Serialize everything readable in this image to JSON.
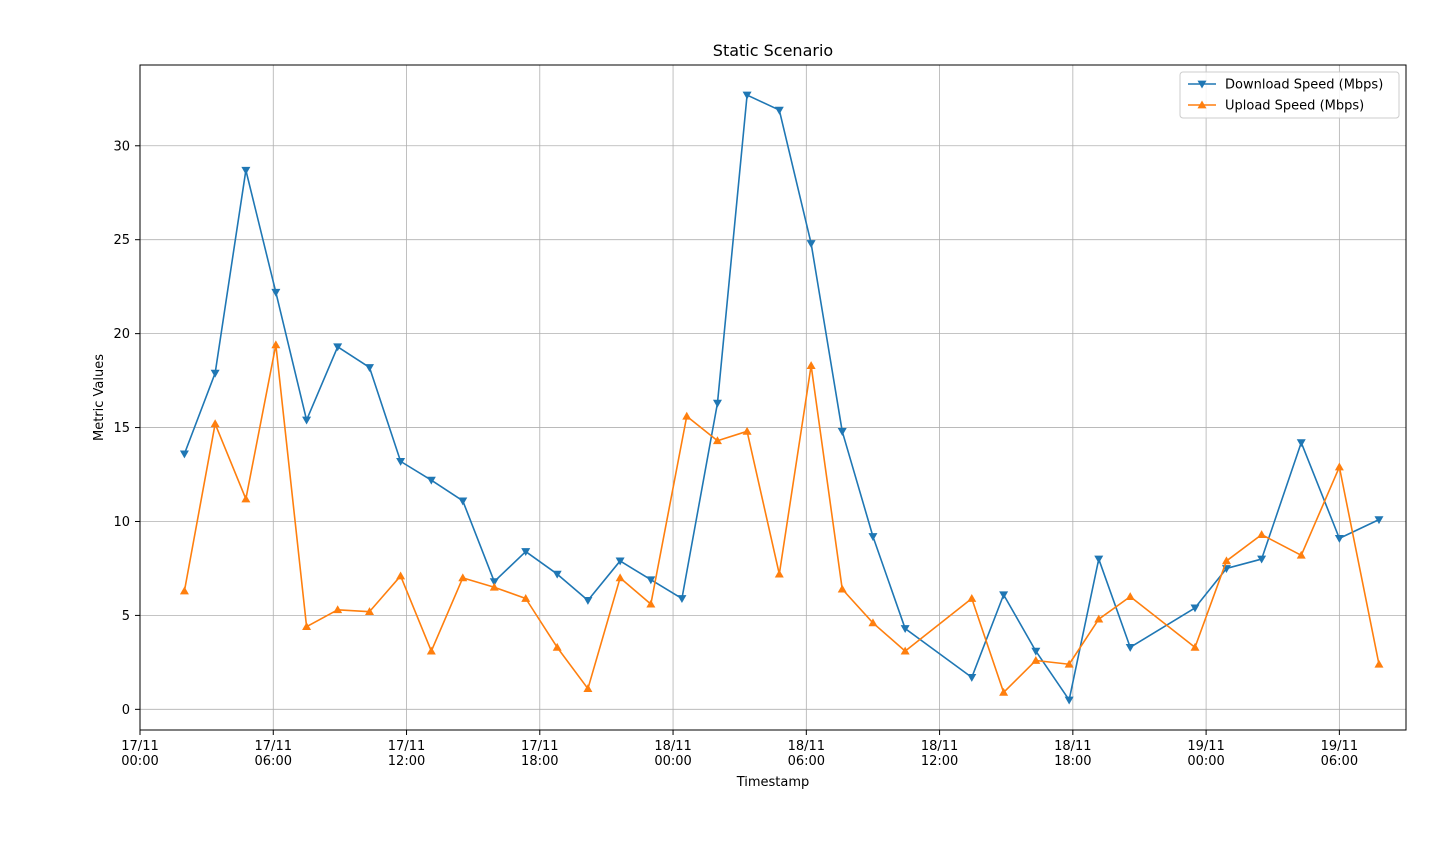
{
  "chart_data": {
    "type": "line",
    "title": "Static Scenario",
    "xlabel": "Timestamp",
    "ylabel": "Metric Values",
    "x_unit": "datetime",
    "xlim": [
      "2023-11-17T00:00",
      "2023-11-19T09:00"
    ],
    "ylim": [
      -1.1,
      34.3
    ],
    "x_ticks": [
      {
        "t": "2023-11-17T00:00",
        "label": [
          "17/11",
          "00:00"
        ]
      },
      {
        "t": "2023-11-17T06:00",
        "label": [
          "17/11",
          "06:00"
        ]
      },
      {
        "t": "2023-11-17T12:00",
        "label": [
          "17/11",
          "12:00"
        ]
      },
      {
        "t": "2023-11-17T18:00",
        "label": [
          "17/11",
          "18:00"
        ]
      },
      {
        "t": "2023-11-18T00:00",
        "label": [
          "18/11",
          "00:00"
        ]
      },
      {
        "t": "2023-11-18T06:00",
        "label": [
          "18/11",
          "06:00"
        ]
      },
      {
        "t": "2023-11-18T12:00",
        "label": [
          "18/11",
          "12:00"
        ]
      },
      {
        "t": "2023-11-18T18:00",
        "label": [
          "18/11",
          "18:00"
        ]
      },
      {
        "t": "2023-11-19T00:00",
        "label": [
          "19/11",
          "00:00"
        ]
      },
      {
        "t": "2023-11-19T06:00",
        "label": [
          "19/11",
          "06:00"
        ]
      }
    ],
    "y_ticks": [
      0,
      5,
      10,
      15,
      20,
      25,
      30
    ],
    "grid": true,
    "legend_position": "top-right",
    "series": [
      {
        "name": "Download Speed (Mbps)",
        "color": "#1f77b4",
        "marker": "triangle-down",
        "points": [
          {
            "x": "2023-11-17T02:00",
            "y": 13.6
          },
          {
            "x": "2023-11-17T03:23",
            "y": 17.9
          },
          {
            "x": "2023-11-17T04:46",
            "y": 28.7
          },
          {
            "x": "2023-11-17T06:07",
            "y": 22.2
          },
          {
            "x": "2023-11-17T07:30",
            "y": 15.4
          },
          {
            "x": "2023-11-17T08:54",
            "y": 19.3
          },
          {
            "x": "2023-11-17T10:20",
            "y": 18.2
          },
          {
            "x": "2023-11-17T11:44",
            "y": 13.2
          },
          {
            "x": "2023-11-17T13:07",
            "y": 12.2
          },
          {
            "x": "2023-11-17T14:32",
            "y": 11.1
          },
          {
            "x": "2023-11-17T15:57",
            "y": 6.8
          },
          {
            "x": "2023-11-17T17:22",
            "y": 8.4
          },
          {
            "x": "2023-11-17T18:47",
            "y": 7.2
          },
          {
            "x": "2023-11-17T20:10",
            "y": 5.8
          },
          {
            "x": "2023-11-17T21:37",
            "y": 7.9
          },
          {
            "x": "2023-11-17T23:00",
            "y": 6.9
          },
          {
            "x": "2023-11-18T00:24",
            "y": 5.9
          },
          {
            "x": "2023-11-18T02:00",
            "y": 16.3
          },
          {
            "x": "2023-11-18T03:20",
            "y": 32.7
          },
          {
            "x": "2023-11-18T04:47",
            "y": 31.9
          },
          {
            "x": "2023-11-18T06:13",
            "y": 24.8
          },
          {
            "x": "2023-11-18T07:37",
            "y": 14.8
          },
          {
            "x": "2023-11-18T09:00",
            "y": 9.2
          },
          {
            "x": "2023-11-18T10:27",
            "y": 4.3
          },
          {
            "x": "2023-11-18T13:27",
            "y": 1.7
          },
          {
            "x": "2023-11-18T14:53",
            "y": 6.1
          },
          {
            "x": "2023-11-18T16:20",
            "y": 3.1
          },
          {
            "x": "2023-11-18T17:50",
            "y": 0.5
          },
          {
            "x": "2023-11-18T19:10",
            "y": 8.0
          },
          {
            "x": "2023-11-18T20:35",
            "y": 3.3
          },
          {
            "x": "2023-11-18T23:30",
            "y": 5.4
          },
          {
            "x": "2023-11-19T00:55",
            "y": 7.5
          },
          {
            "x": "2023-11-19T02:30",
            "y": 8.0
          },
          {
            "x": "2023-11-19T04:17",
            "y": 14.2
          },
          {
            "x": "2023-11-19T06:00",
            "y": 9.1
          },
          {
            "x": "2023-11-19T07:47",
            "y": 10.1
          }
        ]
      },
      {
        "name": "Upload Speed (Mbps)",
        "color": "#ff7f0e",
        "marker": "triangle-up",
        "points": [
          {
            "x": "2023-11-17T02:00",
            "y": 6.3
          },
          {
            "x": "2023-11-17T03:23",
            "y": 15.2
          },
          {
            "x": "2023-11-17T04:46",
            "y": 11.2
          },
          {
            "x": "2023-11-17T06:07",
            "y": 19.4
          },
          {
            "x": "2023-11-17T07:30",
            "y": 4.4
          },
          {
            "x": "2023-11-17T08:54",
            "y": 5.3
          },
          {
            "x": "2023-11-17T10:20",
            "y": 5.2
          },
          {
            "x": "2023-11-17T11:44",
            "y": 7.1
          },
          {
            "x": "2023-11-17T13:07",
            "y": 3.1
          },
          {
            "x": "2023-11-17T14:32",
            "y": 7.0
          },
          {
            "x": "2023-11-17T15:57",
            "y": 6.5
          },
          {
            "x": "2023-11-17T17:22",
            "y": 5.9
          },
          {
            "x": "2023-11-17T18:47",
            "y": 3.3
          },
          {
            "x": "2023-11-17T20:10",
            "y": 1.1
          },
          {
            "x": "2023-11-17T21:37",
            "y": 7.0
          },
          {
            "x": "2023-11-17T23:00",
            "y": 5.6
          },
          {
            "x": "2023-11-18T00:37",
            "y": 15.6
          },
          {
            "x": "2023-11-18T02:00",
            "y": 14.3
          },
          {
            "x": "2023-11-18T03:20",
            "y": 14.8
          },
          {
            "x": "2023-11-18T04:47",
            "y": 7.2
          },
          {
            "x": "2023-11-18T06:13",
            "y": 18.3
          },
          {
            "x": "2023-11-18T07:37",
            "y": 6.4
          },
          {
            "x": "2023-11-18T09:00",
            "y": 4.6
          },
          {
            "x": "2023-11-18T10:27",
            "y": 3.1
          },
          {
            "x": "2023-11-18T13:27",
            "y": 5.9
          },
          {
            "x": "2023-11-18T14:53",
            "y": 0.9
          },
          {
            "x": "2023-11-18T16:20",
            "y": 2.6
          },
          {
            "x": "2023-11-18T17:50",
            "y": 2.4
          },
          {
            "x": "2023-11-18T19:10",
            "y": 4.8
          },
          {
            "x": "2023-11-18T20:35",
            "y": 6.0
          },
          {
            "x": "2023-11-18T23:30",
            "y": 3.3
          },
          {
            "x": "2023-11-19T00:55",
            "y": 7.9
          },
          {
            "x": "2023-11-19T02:30",
            "y": 9.3
          },
          {
            "x": "2023-11-19T04:17",
            "y": 8.2
          },
          {
            "x": "2023-11-19T06:00",
            "y": 12.9
          },
          {
            "x": "2023-11-19T07:47",
            "y": 2.4
          }
        ]
      }
    ]
  }
}
